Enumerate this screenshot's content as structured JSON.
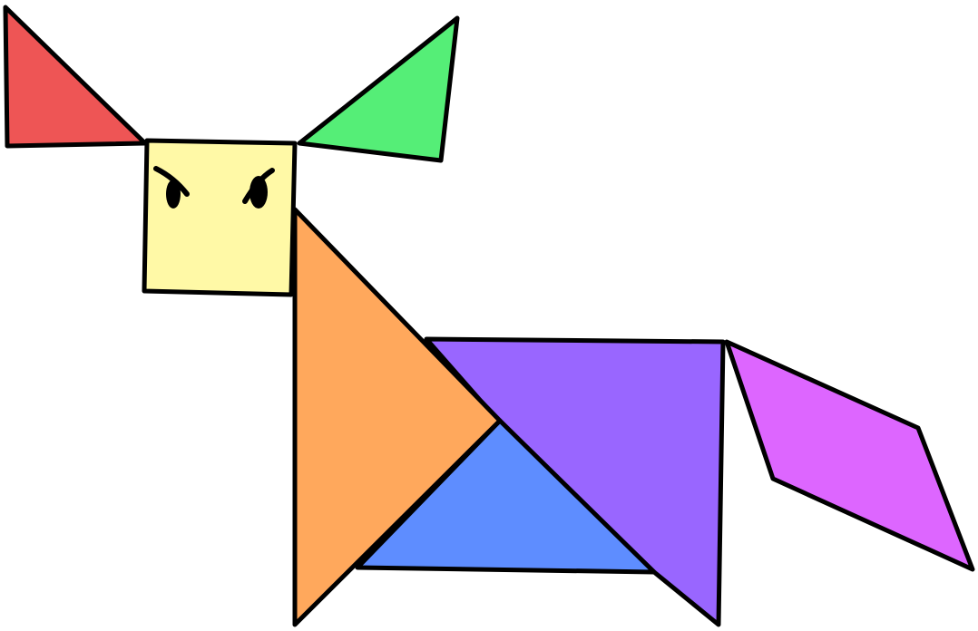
{
  "diagram": {
    "subject": "tangram-cat",
    "pieces": [
      {
        "name": "ear-left",
        "shape": "triangle",
        "color": "#EE5555"
      },
      {
        "name": "ear-right",
        "shape": "triangle",
        "color": "#55EE77"
      },
      {
        "name": "head",
        "shape": "square",
        "color": "#FFF9A6"
      },
      {
        "name": "body-front",
        "shape": "triangle",
        "color": "#FFA85C"
      },
      {
        "name": "body-back",
        "shape": "trapezoid",
        "color": "#9966FF"
      },
      {
        "name": "belly",
        "shape": "triangle",
        "color": "#5E8DFF"
      },
      {
        "name": "tail",
        "shape": "parallelogram",
        "color": "#DD66FF"
      }
    ],
    "eyes_color": "#000000"
  }
}
